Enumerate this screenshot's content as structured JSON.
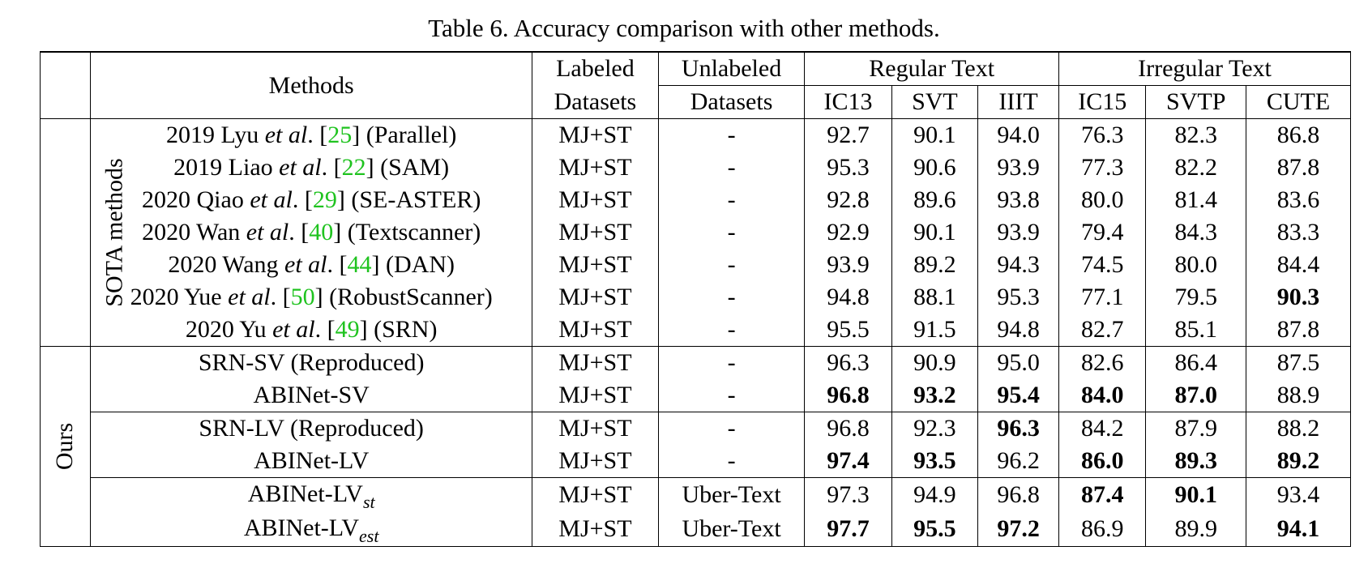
{
  "caption": "Table 6. Accuracy comparison with other methods.",
  "header": {
    "methods": "Methods",
    "labeled": [
      "Labeled",
      "Datasets"
    ],
    "unlabeled": [
      "Unlabeled",
      "Datasets"
    ],
    "regular": "Regular Text",
    "irregular": "Irregular Text",
    "cols": [
      "IC13",
      "SVT",
      "IIIT",
      "IC15",
      "SVTP",
      "CUTE"
    ]
  },
  "groups": {
    "sota": "SOTA methods",
    "ours": "Ours"
  },
  "colors": {
    "ref_link": "#1fc31f"
  },
  "sota_rows": [
    {
      "year": "2019",
      "author": "Lyu",
      "ref": "25",
      "tag": "(Parallel)",
      "labeled": "MJ+ST",
      "unlabeled": "-",
      "values": [
        "92.7",
        "90.1",
        "94.0",
        "76.3",
        "82.3",
        "86.8"
      ],
      "bold": [
        false,
        false,
        false,
        false,
        false,
        false
      ]
    },
    {
      "year": "2019",
      "author": "Liao",
      "ref": "22",
      "tag": "(SAM)",
      "labeled": "MJ+ST",
      "unlabeled": "-",
      "values": [
        "95.3",
        "90.6",
        "93.9",
        "77.3",
        "82.2",
        "87.8"
      ],
      "bold": [
        false,
        false,
        false,
        false,
        false,
        false
      ]
    },
    {
      "year": "2020",
      "author": "Qiao",
      "ref": "29",
      "tag": "(SE-ASTER)",
      "labeled": "MJ+ST",
      "unlabeled": "-",
      "values": [
        "92.8",
        "89.6",
        "93.8",
        "80.0",
        "81.4",
        "83.6"
      ],
      "bold": [
        false,
        false,
        false,
        false,
        false,
        false
      ]
    },
    {
      "year": "2020",
      "author": "Wan",
      "ref": "40",
      "tag": "(Textscanner)",
      "labeled": "MJ+ST",
      "unlabeled": "-",
      "values": [
        "92.9",
        "90.1",
        "93.9",
        "79.4",
        "84.3",
        "83.3"
      ],
      "bold": [
        false,
        false,
        false,
        false,
        false,
        false
      ]
    },
    {
      "year": "2020",
      "author": "Wang",
      "ref": "44",
      "tag": "(DAN)",
      "labeled": "MJ+ST",
      "unlabeled": "-",
      "values": [
        "93.9",
        "89.2",
        "94.3",
        "74.5",
        "80.0",
        "84.4"
      ],
      "bold": [
        false,
        false,
        false,
        false,
        false,
        false
      ]
    },
    {
      "year": "2020",
      "author": "Yue",
      "ref": "50",
      "tag": "(RobustScanner)",
      "labeled": "MJ+ST",
      "unlabeled": "-",
      "values": [
        "94.8",
        "88.1",
        "95.3",
        "77.1",
        "79.5",
        "90.3"
      ],
      "bold": [
        false,
        false,
        false,
        false,
        false,
        true
      ]
    },
    {
      "year": "2020",
      "author": "Yu",
      "ref": "49",
      "tag": "(SRN)",
      "labeled": "MJ+ST",
      "unlabeled": "-",
      "values": [
        "95.5",
        "91.5",
        "94.8",
        "82.7",
        "85.1",
        "87.8"
      ],
      "bold": [
        false,
        false,
        false,
        false,
        false,
        false
      ]
    }
  ],
  "etal": "et al",
  "ours_rows": [
    {
      "name": "SRN-SV (Reproduced)",
      "sub": "",
      "labeled": "MJ+ST",
      "unlabeled": "-",
      "values": [
        "96.3",
        "90.9",
        "95.0",
        "82.6",
        "86.4",
        "87.5"
      ],
      "bold": [
        false,
        false,
        false,
        false,
        false,
        false
      ]
    },
    {
      "name": "ABINet-SV",
      "sub": "",
      "labeled": "MJ+ST",
      "unlabeled": "-",
      "values": [
        "96.8",
        "93.2",
        "95.4",
        "84.0",
        "87.0",
        "88.9"
      ],
      "bold": [
        true,
        true,
        true,
        true,
        true,
        false
      ]
    },
    {
      "name": "SRN-LV (Reproduced)",
      "sub": "",
      "labeled": "MJ+ST",
      "unlabeled": "-",
      "values": [
        "96.8",
        "92.3",
        "96.3",
        "84.2",
        "87.9",
        "88.2"
      ],
      "bold": [
        false,
        false,
        true,
        false,
        false,
        false
      ]
    },
    {
      "name": "ABINet-LV",
      "sub": "",
      "labeled": "MJ+ST",
      "unlabeled": "-",
      "values": [
        "97.4",
        "93.5",
        "96.2",
        "86.0",
        "89.3",
        "89.2"
      ],
      "bold": [
        true,
        true,
        false,
        true,
        true,
        true
      ]
    },
    {
      "name": "ABINet-LV",
      "sub": "st",
      "labeled": "MJ+ST",
      "unlabeled": "Uber-Text",
      "values": [
        "97.3",
        "94.9",
        "96.8",
        "87.4",
        "90.1",
        "93.4"
      ],
      "bold": [
        false,
        false,
        false,
        true,
        true,
        false
      ]
    },
    {
      "name": "ABINet-LV",
      "sub": "est",
      "labeled": "MJ+ST",
      "unlabeled": "Uber-Text",
      "values": [
        "97.7",
        "95.5",
        "97.2",
        "86.9",
        "89.9",
        "94.1"
      ],
      "bold": [
        true,
        true,
        true,
        false,
        false,
        true
      ]
    }
  ]
}
